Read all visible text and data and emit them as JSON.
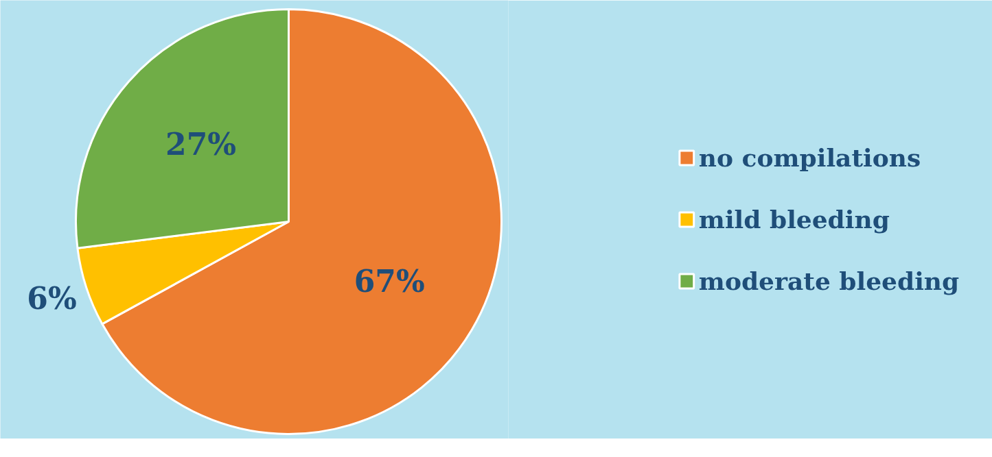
{
  "chart_data": {
    "type": "pie",
    "categories": [
      "no compilations",
      "mild bleeding",
      "moderate bleeding"
    ],
    "values": [
      67,
      6,
      27
    ],
    "colors": [
      "#ed7d31",
      "#ffc000",
      "#70ad47"
    ],
    "value_labels": [
      "67%",
      "6%",
      "27%"
    ],
    "legend": "right"
  }
}
